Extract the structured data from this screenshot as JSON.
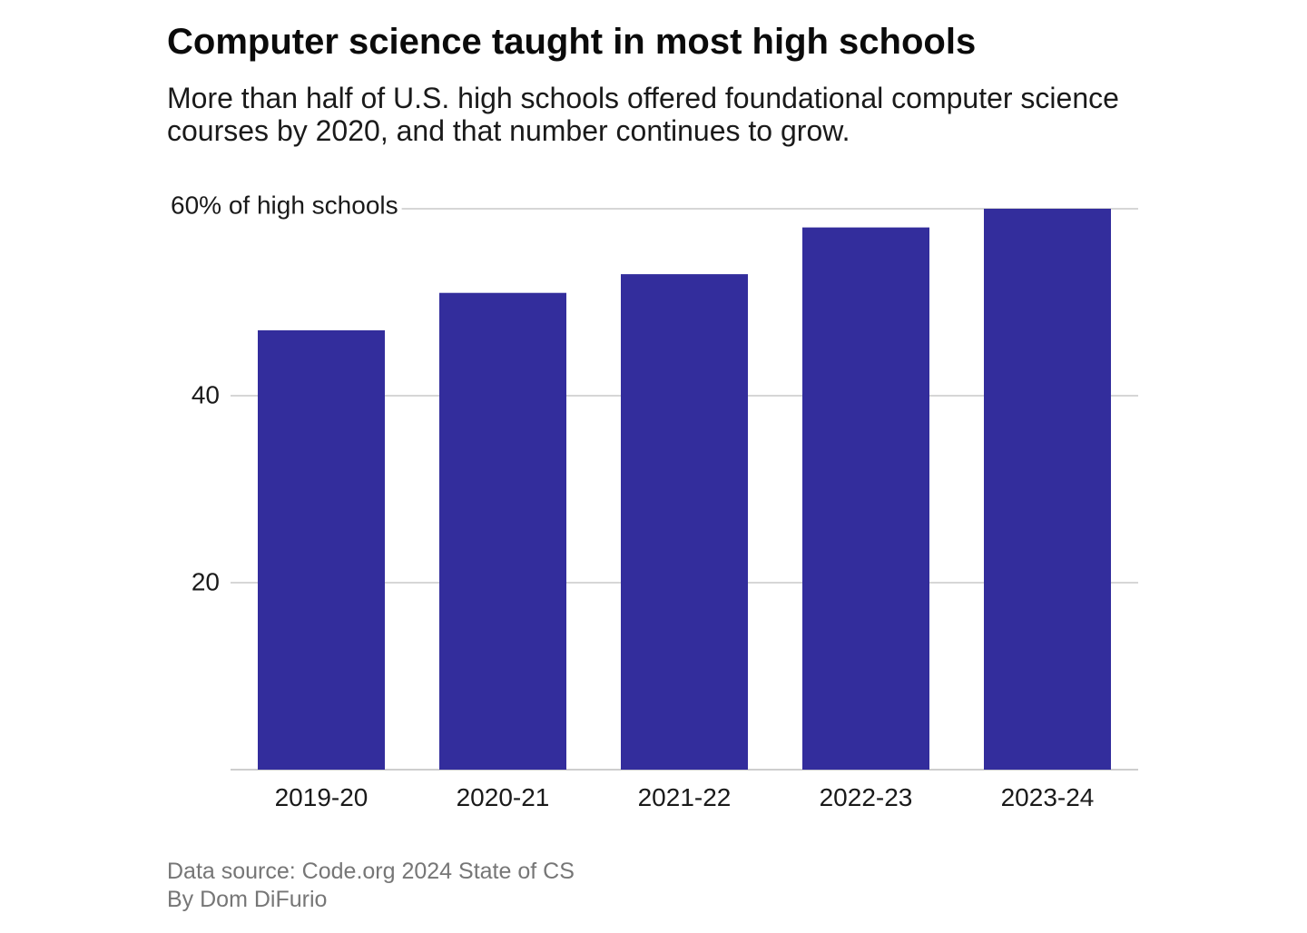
{
  "header": {
    "title": "Computer science taught in most high schools",
    "subtitle": "More than half of U.S. high schools offered foundational computer science courses by 2020, and that number continues to grow."
  },
  "chart_data": {
    "type": "bar",
    "title": "Computer science taught in most high schools",
    "categories": [
      "2019-20",
      "2020-21",
      "2021-22",
      "2022-23",
      "2023-24"
    ],
    "values": [
      47,
      51,
      53,
      58,
      60
    ],
    "ylim": [
      0,
      60
    ],
    "yticks": [
      20,
      40,
      60
    ],
    "ytick_labels": [
      "20",
      "40",
      "60% of high schools"
    ],
    "xlabel": "",
    "ylabel": "",
    "grid": true,
    "bar_color": "#332d9c",
    "grid_color": "#c8c8c8"
  },
  "footer": {
    "source": "Data source: Code.org 2024 State of CS",
    "byline": "By Dom DiFurio"
  }
}
